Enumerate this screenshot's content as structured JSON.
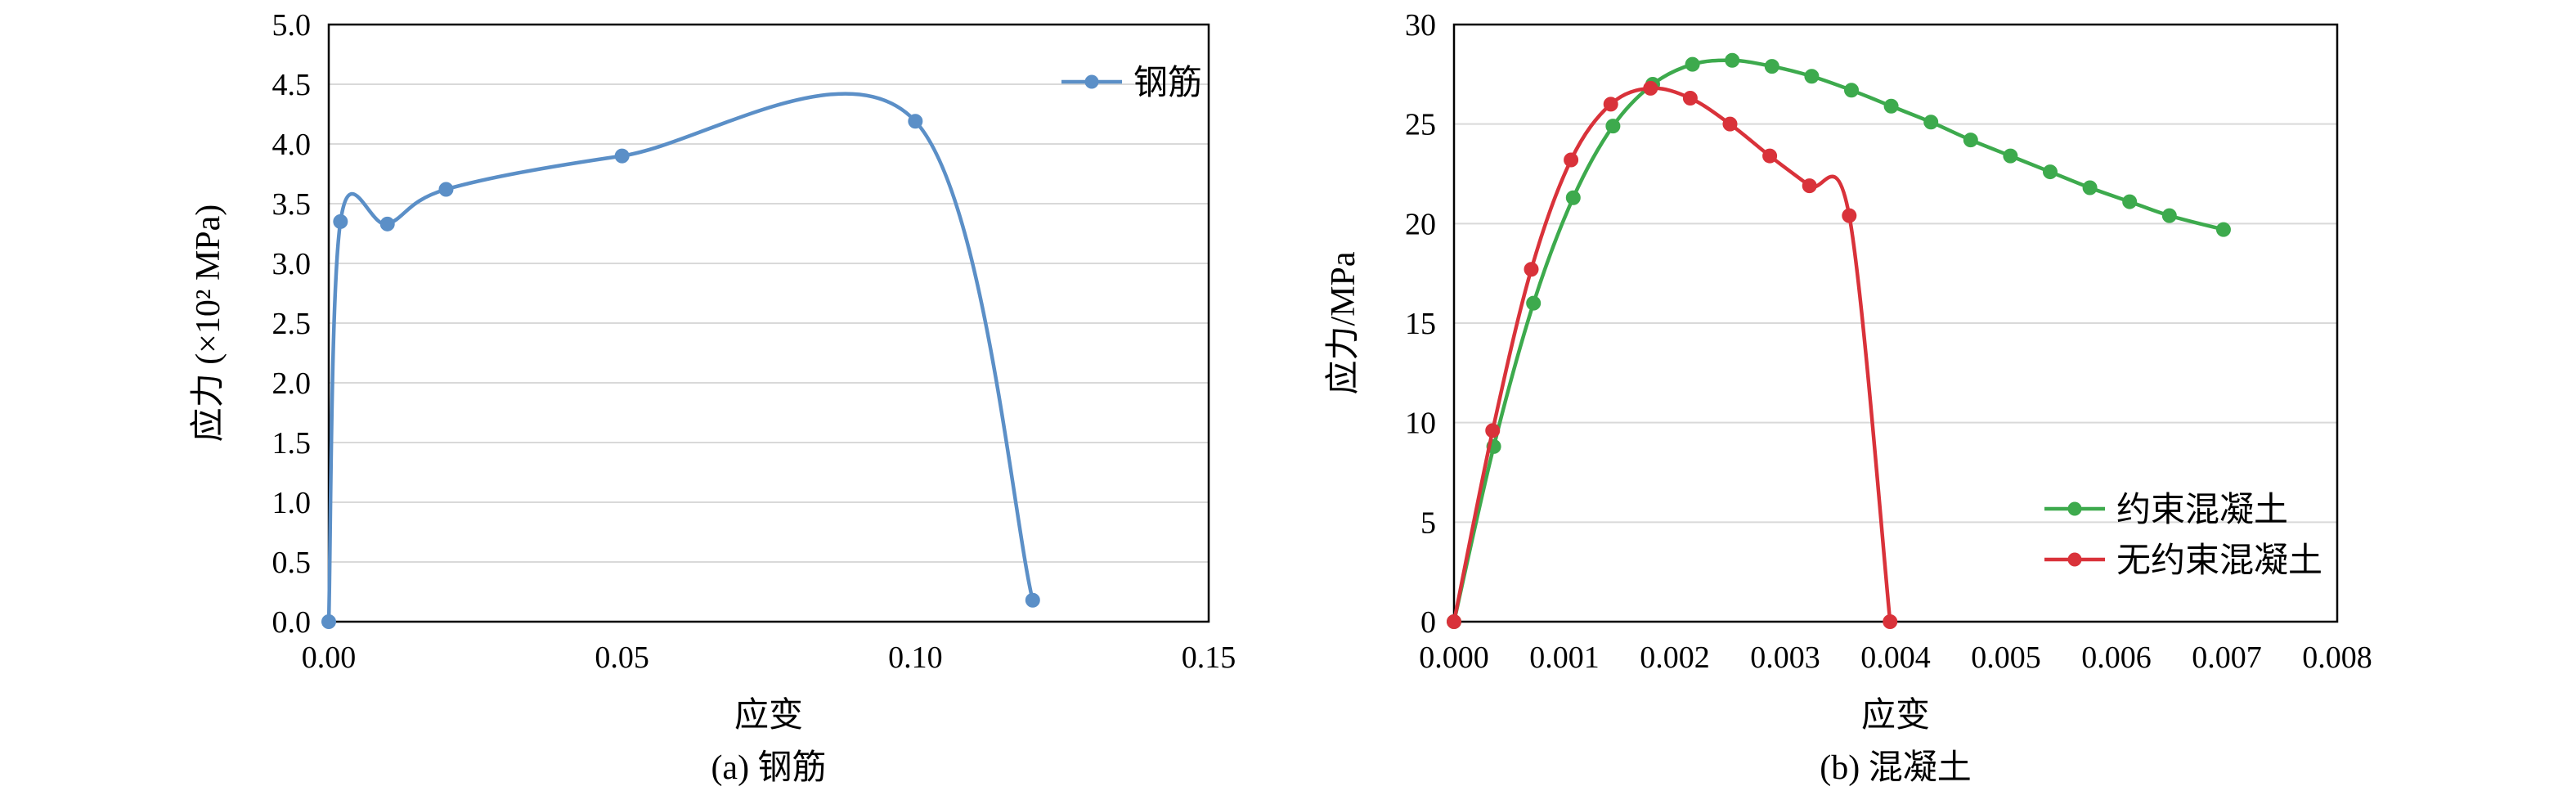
{
  "chart_data": [
    {
      "type": "line",
      "caption": "(a) 钢筋",
      "xlabel": "应变",
      "ylabel": "应力 (×10² MPa)",
      "xlim": [
        0,
        0.15
      ],
      "ylim": [
        0,
        5.0
      ],
      "xticks": [
        "0.00",
        "0.05",
        "0.10",
        "0.15"
      ],
      "yticks": [
        "0.0",
        "0.5",
        "1.0",
        "1.5",
        "2.0",
        "2.5",
        "3.0",
        "3.5",
        "4.0",
        "4.5",
        "5.0"
      ],
      "grid": true,
      "legend_position": "top-right",
      "series": [
        {
          "name": "钢筋",
          "color": "#5b8fc7",
          "x": [
            0.0,
            0.002,
            0.01,
            0.02,
            0.05,
            0.1,
            0.12
          ],
          "y": [
            0.0,
            3.35,
            3.33,
            3.62,
            3.9,
            4.19,
            0.18
          ]
        }
      ]
    },
    {
      "type": "line",
      "caption": "(b) 混凝土",
      "xlabel": "应变",
      "ylabel": "应力/MPa",
      "xlim": [
        0,
        0.008
      ],
      "ylim": [
        0,
        30
      ],
      "xticks": [
        "0.000",
        "0.001",
        "0.002",
        "0.003",
        "0.004",
        "0.005",
        "0.006",
        "0.007",
        "0.008"
      ],
      "yticks": [
        "0",
        "5",
        "10",
        "15",
        "20",
        "25",
        "30"
      ],
      "grid": true,
      "legend_position": "bottom-right",
      "series": [
        {
          "name": "约束混凝土",
          "color": "#3daa4d",
          "x": [
            0.0,
            0.00036,
            0.00072,
            0.00108,
            0.00144,
            0.0018,
            0.00216,
            0.00252,
            0.00288,
            0.00324,
            0.0036,
            0.00396,
            0.00432,
            0.00468,
            0.00504,
            0.0054,
            0.00576,
            0.00612,
            0.00648,
            0.00697
          ],
          "y": [
            0.0,
            8.8,
            16.0,
            21.3,
            24.9,
            27.0,
            28.0,
            28.2,
            27.9,
            27.4,
            26.7,
            25.9,
            25.1,
            24.2,
            23.4,
            22.6,
            21.8,
            21.1,
            20.4,
            19.7
          ]
        },
        {
          "name": "无约束混凝土",
          "color": "#d9323a",
          "x": [
            0.0,
            0.00035,
            0.0007,
            0.00106,
            0.00142,
            0.00178,
            0.00214,
            0.0025,
            0.00286,
            0.00322,
            0.00358,
            0.00395
          ],
          "y": [
            0.0,
            9.6,
            17.7,
            23.2,
            26.0,
            26.8,
            26.3,
            25.0,
            23.4,
            21.9,
            20.4,
            0.0
          ]
        }
      ]
    }
  ]
}
